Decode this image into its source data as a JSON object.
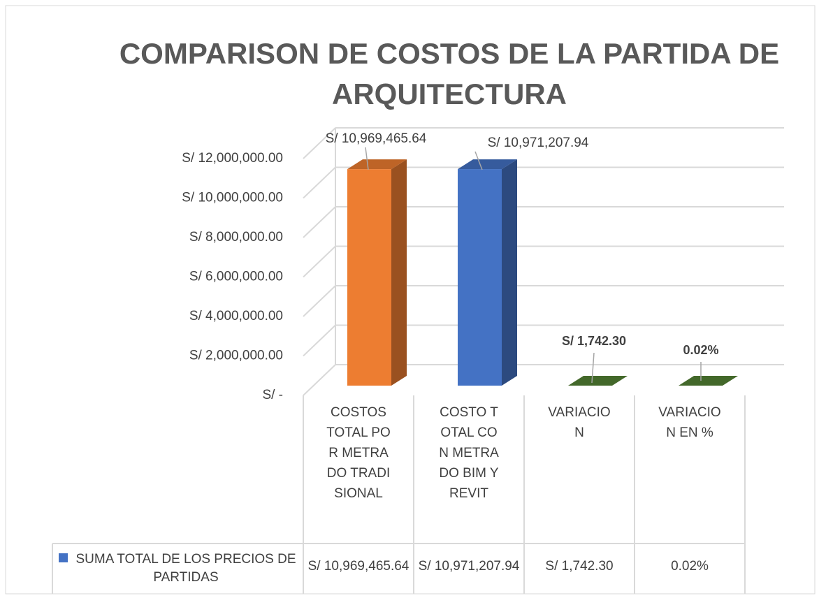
{
  "chart_data": {
    "type": "bar3d",
    "title": "COMPARISON DE COSTOS DE LA PARTIDA DE ARQUITECTURA",
    "categories": [
      "COSTOS TOTAL POR METRADO TRADISIONAL",
      "COSTO TOTAL CON METRADO BIM Y REVIT",
      "VARIACION",
      "VARIACION EN %"
    ],
    "series": [
      {
        "name": "SUMA TOTAL DE LOS PRECIOS DE PARTIDAS",
        "color": "#4472c4",
        "point_colors": [
          "#ed7d31",
          "#4472c4",
          "#548235",
          "#548235"
        ],
        "values": [
          10969465.64,
          10971207.94,
          1742.3,
          0.02
        ],
        "value_labels": [
          "S/ 10,969,465.64",
          "S/ 10,971,207.94",
          "S/ 1,742.30",
          "0.02%"
        ]
      }
    ],
    "ylim": [
      0,
      12000000
    ],
    "yticks": [
      {
        "value": 0,
        "label": "S/ -"
      },
      {
        "value": 2000000,
        "label": "S/ 2,000,000.00"
      },
      {
        "value": 4000000,
        "label": "S/ 4,000,000.00"
      },
      {
        "value": 6000000,
        "label": "S/ 6,000,000.00"
      },
      {
        "value": 8000000,
        "label": "S/ 8,000,000.00"
      },
      {
        "value": 10000000,
        "label": "S/ 10,000,000.00"
      },
      {
        "value": 12000000,
        "label": "S/ 12,000,000.00"
      }
    ],
    "grid": true,
    "data_table": true
  }
}
